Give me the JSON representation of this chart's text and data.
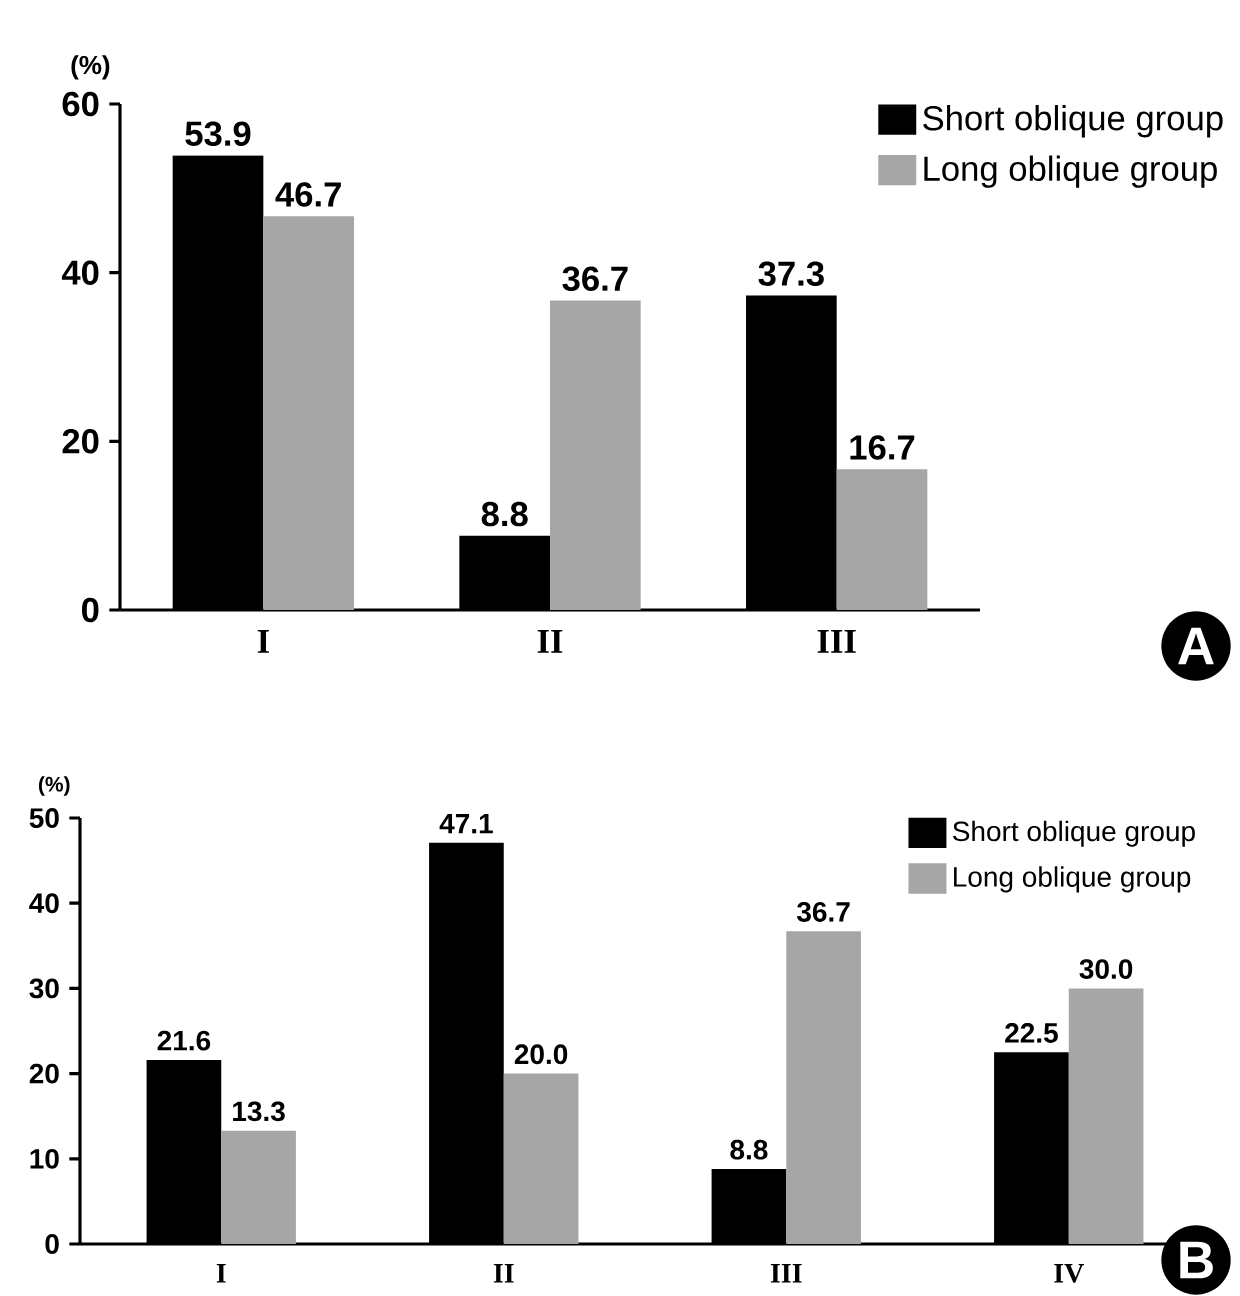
{
  "chart_data": [
    {
      "type": "bar",
      "ylabel": "(%)",
      "categories": [
        "I",
        "II",
        "III"
      ],
      "series": [
        {
          "name": "Short oblique group",
          "color": "#000000",
          "values": [
            53.9,
            8.8,
            37.3
          ],
          "value_labels": [
            "53.9",
            "8.8",
            "37.3"
          ]
        },
        {
          "name": "Long oblique group",
          "color": "#a6a6a6",
          "values": [
            46.7,
            36.7,
            16.7
          ],
          "value_labels": [
            "46.7",
            "36.7",
            "16.7"
          ]
        }
      ],
      "ylim": [
        0,
        60
      ],
      "yticks": [
        0,
        20,
        40,
        60
      ],
      "legend": "top right",
      "annotations": [
        "A"
      ]
    },
    {
      "type": "bar",
      "ylabel": "(%)",
      "categories": [
        "I",
        "II",
        "III",
        "IV"
      ],
      "series": [
        {
          "name": "Short oblique group",
          "color": "#000000",
          "values": [
            21.6,
            47.1,
            8.8,
            22.5
          ],
          "value_labels": [
            "21.6",
            "47.1",
            "8.8",
            "22.5"
          ]
        },
        {
          "name": "Long oblique group",
          "color": "#a6a6a6",
          "values": [
            13.3,
            20.0,
            36.7,
            30.0
          ],
          "value_labels": [
            "13.3",
            "20.0",
            "36.7",
            "30.0"
          ]
        }
      ],
      "ylim": [
        0,
        50
      ],
      "yticks": [
        0,
        10,
        20,
        30,
        40,
        50
      ],
      "legend": "top right",
      "annotations": [
        "B"
      ]
    }
  ]
}
